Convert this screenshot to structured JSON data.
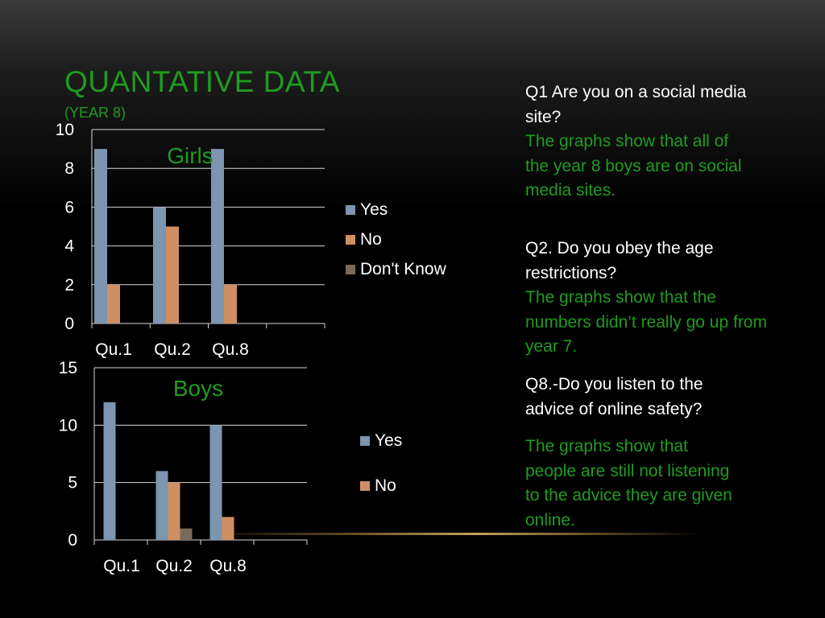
{
  "slide": {
    "title": "QUANTATIVE DATA",
    "subtitle": "(YEAR 8)"
  },
  "chart_data": [
    {
      "type": "bar",
      "title": "Girls",
      "categories": [
        "Qu.1",
        "Qu.2",
        "Qu.8"
      ],
      "series": [
        {
          "name": "Yes",
          "values": [
            9,
            6,
            9
          ],
          "color": "#7c95b0"
        },
        {
          "name": "No",
          "values": [
            2,
            5,
            2
          ],
          "color": "#d08f62"
        },
        {
          "name": "Don't Know",
          "values": [
            0,
            0,
            0
          ],
          "color": "#7a6a5a"
        }
      ],
      "ylim": [
        0,
        10
      ],
      "yticks": [
        "0",
        "2",
        "4",
        "6",
        "8",
        "10"
      ],
      "grid": true,
      "legend": "right"
    },
    {
      "type": "bar",
      "title": "Boys",
      "categories": [
        "Qu.1",
        "Qu.2",
        "Qu.8"
      ],
      "series": [
        {
          "name": "Yes",
          "values": [
            12,
            6,
            10
          ],
          "color": "#7c95b0"
        },
        {
          "name": "No",
          "values": [
            0,
            5,
            2
          ],
          "color": "#d08f62"
        },
        {
          "name": "",
          "values": [
            0,
            1,
            0
          ],
          "color": "#7a6a5a"
        }
      ],
      "ylim": [
        0,
        15
      ],
      "yticks": [
        "0",
        "5",
        "10",
        "15"
      ],
      "grid": true,
      "legend": "right"
    }
  ],
  "legends": {
    "girls": [
      {
        "label": "Yes",
        "color": "#7c95b0"
      },
      {
        "label": "No",
        "color": "#d08f62"
      },
      {
        "label": "Don't Know",
        "color": "#7a6a5a"
      }
    ],
    "boys": [
      {
        "label": "Yes",
        "color": "#7c95b0"
      },
      {
        "label": "No",
        "color": "#d08f62"
      }
    ]
  },
  "notes": {
    "q1_question": "Q1 Are you on a social media site?",
    "q1_answer": "The graphs show that all of the year 8 boys are on social media sites.",
    "q2_question": "Q2. Do you obey the age restrictions?",
    "q2_answer": "The graphs show that the numbers didn’t really go up from year 7.",
    "q8_question": "Q8.-Do you listen to the advice of online safety?",
    "q8_answer": "The graphs show that people are still not listening to the advice they are given online."
  }
}
